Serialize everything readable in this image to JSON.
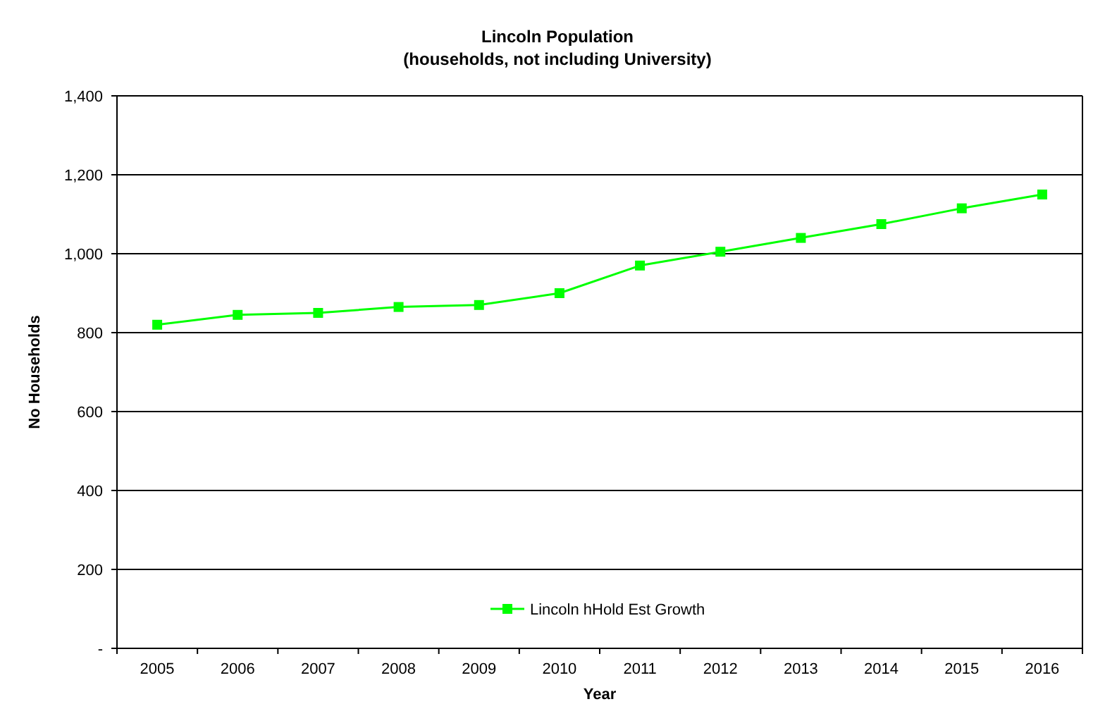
{
  "chart_data": {
    "type": "line",
    "title": "Lincoln Population",
    "subtitle": "(households, not including University)",
    "xlabel": "Year",
    "ylabel": "No Households",
    "categories": [
      "2005",
      "2006",
      "2007",
      "2008",
      "2009",
      "2010",
      "2011",
      "2012",
      "2013",
      "2014",
      "2015",
      "2016"
    ],
    "series": [
      {
        "name": "Lincoln hHold Est Growth",
        "color": "#00ff00",
        "values": [
          820,
          845,
          850,
          865,
          870,
          900,
          970,
          1005,
          1040,
          1075,
          1115,
          1150
        ]
      }
    ],
    "ylim": [
      0,
      1400
    ],
    "yticks": [
      {
        "value": 0,
        "label": "-"
      },
      {
        "value": 200,
        "label": "200"
      },
      {
        "value": 400,
        "label": "400"
      },
      {
        "value": 600,
        "label": "600"
      },
      {
        "value": 800,
        "label": "800"
      },
      {
        "value": 1000,
        "label": "1,000"
      },
      {
        "value": 1200,
        "label": "1,200"
      },
      {
        "value": 1400,
        "label": "1,400"
      }
    ],
    "grid": "y",
    "legend": "bottom",
    "marker": "square",
    "line_style": "solid"
  }
}
